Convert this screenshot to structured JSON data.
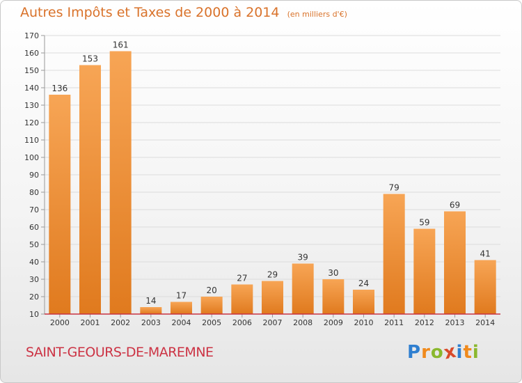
{
  "title": "Autres Impôts et Taxes de 2000 à 2014",
  "subtitle": "(en milliers d'€)",
  "commune": "SAINT-GEOURS-DE-MAREMNE",
  "logo": "Proxiti",
  "colors": {
    "title": "#d9722a",
    "commune": "#cc3344",
    "bar_light": "#f7a555",
    "bar_dark": "#e07a1e",
    "axis": "#c83241",
    "logo": [
      "#2f7fd0",
      "#f08a1c",
      "#8ab82e",
      "#d94a2a",
      "#2f7fd0",
      "#f08a1c",
      "#8ab82e"
    ]
  },
  "chart_data": {
    "type": "bar",
    "categories": [
      "2000",
      "2001",
      "2002",
      "2003",
      "2004",
      "2005",
      "2006",
      "2007",
      "2008",
      "2009",
      "2010",
      "2011",
      "2012",
      "2013",
      "2014"
    ],
    "values": [
      136,
      153,
      161,
      14,
      17,
      20,
      27,
      29,
      39,
      30,
      24,
      79,
      59,
      69,
      41
    ],
    "ylim": [
      10,
      170
    ],
    "yticks": [
      10,
      20,
      30,
      40,
      50,
      60,
      70,
      80,
      90,
      100,
      110,
      120,
      130,
      140,
      150,
      160,
      170
    ],
    "grid": true,
    "legend": "none"
  }
}
